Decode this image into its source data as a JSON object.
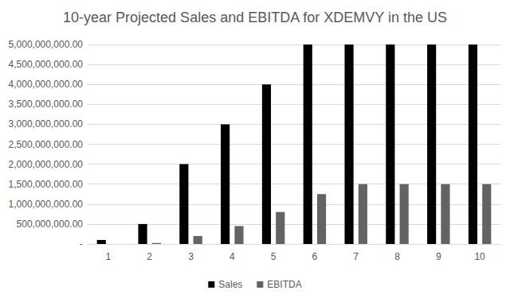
{
  "chart_data": {
    "type": "bar",
    "title": "10-year Projected Sales and EBITDA for XDEMVY in the US",
    "categories": [
      "1",
      "2",
      "3",
      "4",
      "5",
      "6",
      "7",
      "8",
      "9",
      "10"
    ],
    "series": [
      {
        "name": "Sales",
        "color": "#000000",
        "values": [
          100000000,
          500000000,
          2000000000,
          3000000000,
          4000000000,
          5000000000,
          5000000000,
          5000000000,
          5000000000,
          5000000000
        ]
      },
      {
        "name": "EBITDA",
        "color": "#636363",
        "values": [
          0,
          25000000,
          200000000,
          450000000,
          800000000,
          1250000000,
          1500000000,
          1500000000,
          1500000000,
          1500000000
        ]
      }
    ],
    "ylim": [
      0,
      5000000000
    ],
    "yticks": [
      {
        "value": 0,
        "label": "-"
      },
      {
        "value": 500000000,
        "label": "500,000,000.00"
      },
      {
        "value": 1000000000,
        "label": "1,000,000,000.00"
      },
      {
        "value": 1500000000,
        "label": "1,500,000,000.00"
      },
      {
        "value": 2000000000,
        "label": "2,000,000,000.00"
      },
      {
        "value": 2500000000,
        "label": "2,500,000,000.00"
      },
      {
        "value": 3000000000,
        "label": "3,000,000,000.00"
      },
      {
        "value": 3500000000,
        "label": "3,500,000,000.00"
      },
      {
        "value": 4000000000,
        "label": "4,000,000,000.00"
      },
      {
        "value": 4500000000,
        "label": "4,500,000,000.00"
      },
      {
        "value": 5000000000,
        "label": "5,000,000,000.00"
      }
    ],
    "grid": true,
    "legend": "bottom"
  }
}
